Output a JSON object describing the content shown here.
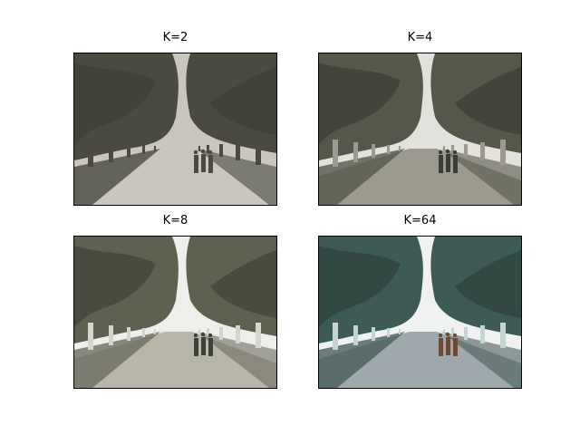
{
  "panels": [
    {
      "title": "K=2",
      "palette": {
        "sky": "#c9c6c0",
        "canopy": "#4a4a40",
        "canopy_dark": "#3e3e36",
        "trunk": "#4a4a40",
        "ground": "#c9c6c0",
        "ground_edge": "#4a4a40",
        "people": "#4a4a40"
      }
    },
    {
      "title": "K=4",
      "palette": {
        "sky": "#e3e1db",
        "canopy": "#55574b",
        "canopy_dark": "#3c3d34",
        "trunk": "#9c9a8f",
        "ground": "#9c9a8f",
        "ground_edge": "#55574b",
        "people": "#3c3d34"
      }
    },
    {
      "title": "K=8",
      "palette": {
        "sky": "#eeeeea",
        "canopy": "#5c6150",
        "canopy_dark": "#3f4337",
        "trunk": "#d6d4cc",
        "ground": "#b8b5aa",
        "ground_edge": "#6d6d60",
        "people": "#3f4337"
      }
    },
    {
      "title": "K=64",
      "palette": {
        "sky": "#f0f2f2",
        "canopy": "#3e5a55",
        "canopy_dark": "#2c403c",
        "trunk": "#c6d4d4",
        "ground": "#9fa8ad",
        "ground_edge": "#4a5e5a",
        "people": "#6b4a3a"
      }
    }
  ]
}
